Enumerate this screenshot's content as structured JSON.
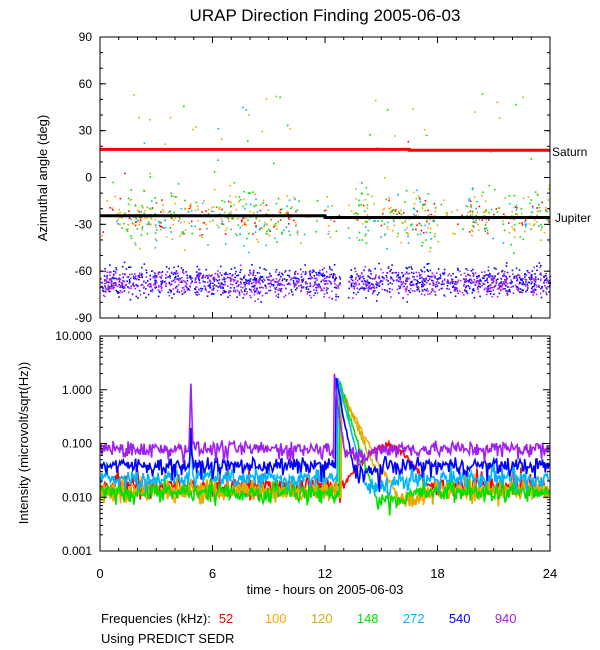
{
  "chart_data": [
    {
      "type": "scatter",
      "title": "URAP Direction Finding  2005-06-03",
      "xlabel": "",
      "ylabel": "Azimuthal angle (deg)",
      "xlim": [
        0,
        24
      ],
      "ylim": [
        -90,
        90
      ],
      "yticks": [
        "90",
        "60",
        "30",
        "0",
        "-30",
        "-60",
        "-90"
      ],
      "reference_lines": [
        {
          "name": "Saturn",
          "color": "#ff0000",
          "segments": [
            [
              0,
              18
            ],
            [
              16.5,
              18
            ],
            [
              16.5,
              17.4
            ],
            [
              24,
              17.4
            ]
          ]
        },
        {
          "name": "Jupiter",
          "color": "#000000",
          "segments": [
            [
              0,
              -24.5
            ],
            [
              12,
              -24.5
            ],
            [
              12,
              -25.6
            ],
            [
              24,
              -25.6
            ]
          ]
        }
      ],
      "series": [
        {
          "name": "52",
          "color": "#ff0000",
          "center": -25,
          "spread": 10,
          "density": "sparse"
        },
        {
          "name": "100",
          "color": "#ffa500",
          "center": -25,
          "spread": 14,
          "density": "sparse"
        },
        {
          "name": "120",
          "color": "#d4af00",
          "center": -25,
          "spread": 14,
          "density": "medium"
        },
        {
          "name": "148",
          "color": "#00e000",
          "center": -23,
          "spread": 18,
          "density": "medium"
        },
        {
          "name": "272",
          "color": "#00b4ff",
          "center": -28,
          "spread": 14,
          "density": "sparse"
        },
        {
          "name": "540",
          "color": "#0000ff",
          "center": -66,
          "spread": 8,
          "density": "dense"
        },
        {
          "name": "940",
          "color": "#a020f0",
          "center": -67,
          "spread": 7,
          "density": "dense"
        }
      ],
      "gaps_hours": [
        [
          4.9,
          5.0
        ],
        [
          12.8,
          13.2
        ]
      ]
    },
    {
      "type": "line",
      "title": "",
      "xlabel": "time - hours on 2005-06-03",
      "ylabel": "Intensity (microvolt/sqrt(Hz))",
      "xlim": [
        0,
        24
      ],
      "ylim": [
        0.001,
        10.0
      ],
      "yscale": "log",
      "yticks": [
        "10.000",
        "1.000",
        "0.100",
        "0.010",
        "0.001"
      ],
      "xticks": [
        "0",
        "6",
        "12",
        "18",
        "24"
      ],
      "series": [
        {
          "name": "52",
          "color": "#ff0000",
          "baseline": 0.016,
          "burst_peak": 0.09,
          "burst_hours": [
            13,
            17.5
          ]
        },
        {
          "name": "100",
          "color": "#ffa500",
          "baseline": 0.013,
          "burst_peak": 1.0,
          "burst_hours": [
            12.9,
            16.0
          ]
        },
        {
          "name": "120",
          "color": "#d4af00",
          "baseline": 0.013,
          "burst_peak": 1.1,
          "burst_hours": [
            12.9,
            15.5
          ]
        },
        {
          "name": "148",
          "color": "#00e000",
          "baseline": 0.012,
          "burst_peak": 1.5,
          "burst_hours": [
            12.8,
            14.8
          ]
        },
        {
          "name": "272",
          "color": "#00b4ff",
          "baseline": 0.022,
          "burst_peak": 1.8,
          "burst_hours": [
            12.7,
            14.2
          ]
        },
        {
          "name": "540",
          "color": "#0000ff",
          "baseline": 0.039,
          "burst_peak": 1.8,
          "burst_hours": [
            12.6,
            13.6
          ]
        },
        {
          "name": "940",
          "color": "#a020f0",
          "baseline": 0.08,
          "burst_peak": 1.8,
          "burst_hours": [
            12.5,
            13.1
          ]
        }
      ],
      "small_burst": {
        "hour": 4.85,
        "peak": 1.3,
        "series": [
          "940",
          "540",
          "272"
        ]
      }
    }
  ],
  "labels": {
    "title": "URAP Direction Finding  2005-06-03",
    "top_ylabel": "Azimuthal angle (deg)",
    "bottom_ylabel": "Intensity (microvolt/sqrt(Hz))",
    "xlabel": "time - hours on 2005-06-03",
    "saturn": "Saturn",
    "jupiter": "Jupiter"
  },
  "footer": {
    "frequencies_title": "Frequencies (kHz):",
    "note": "Using PREDICT SEDR"
  }
}
